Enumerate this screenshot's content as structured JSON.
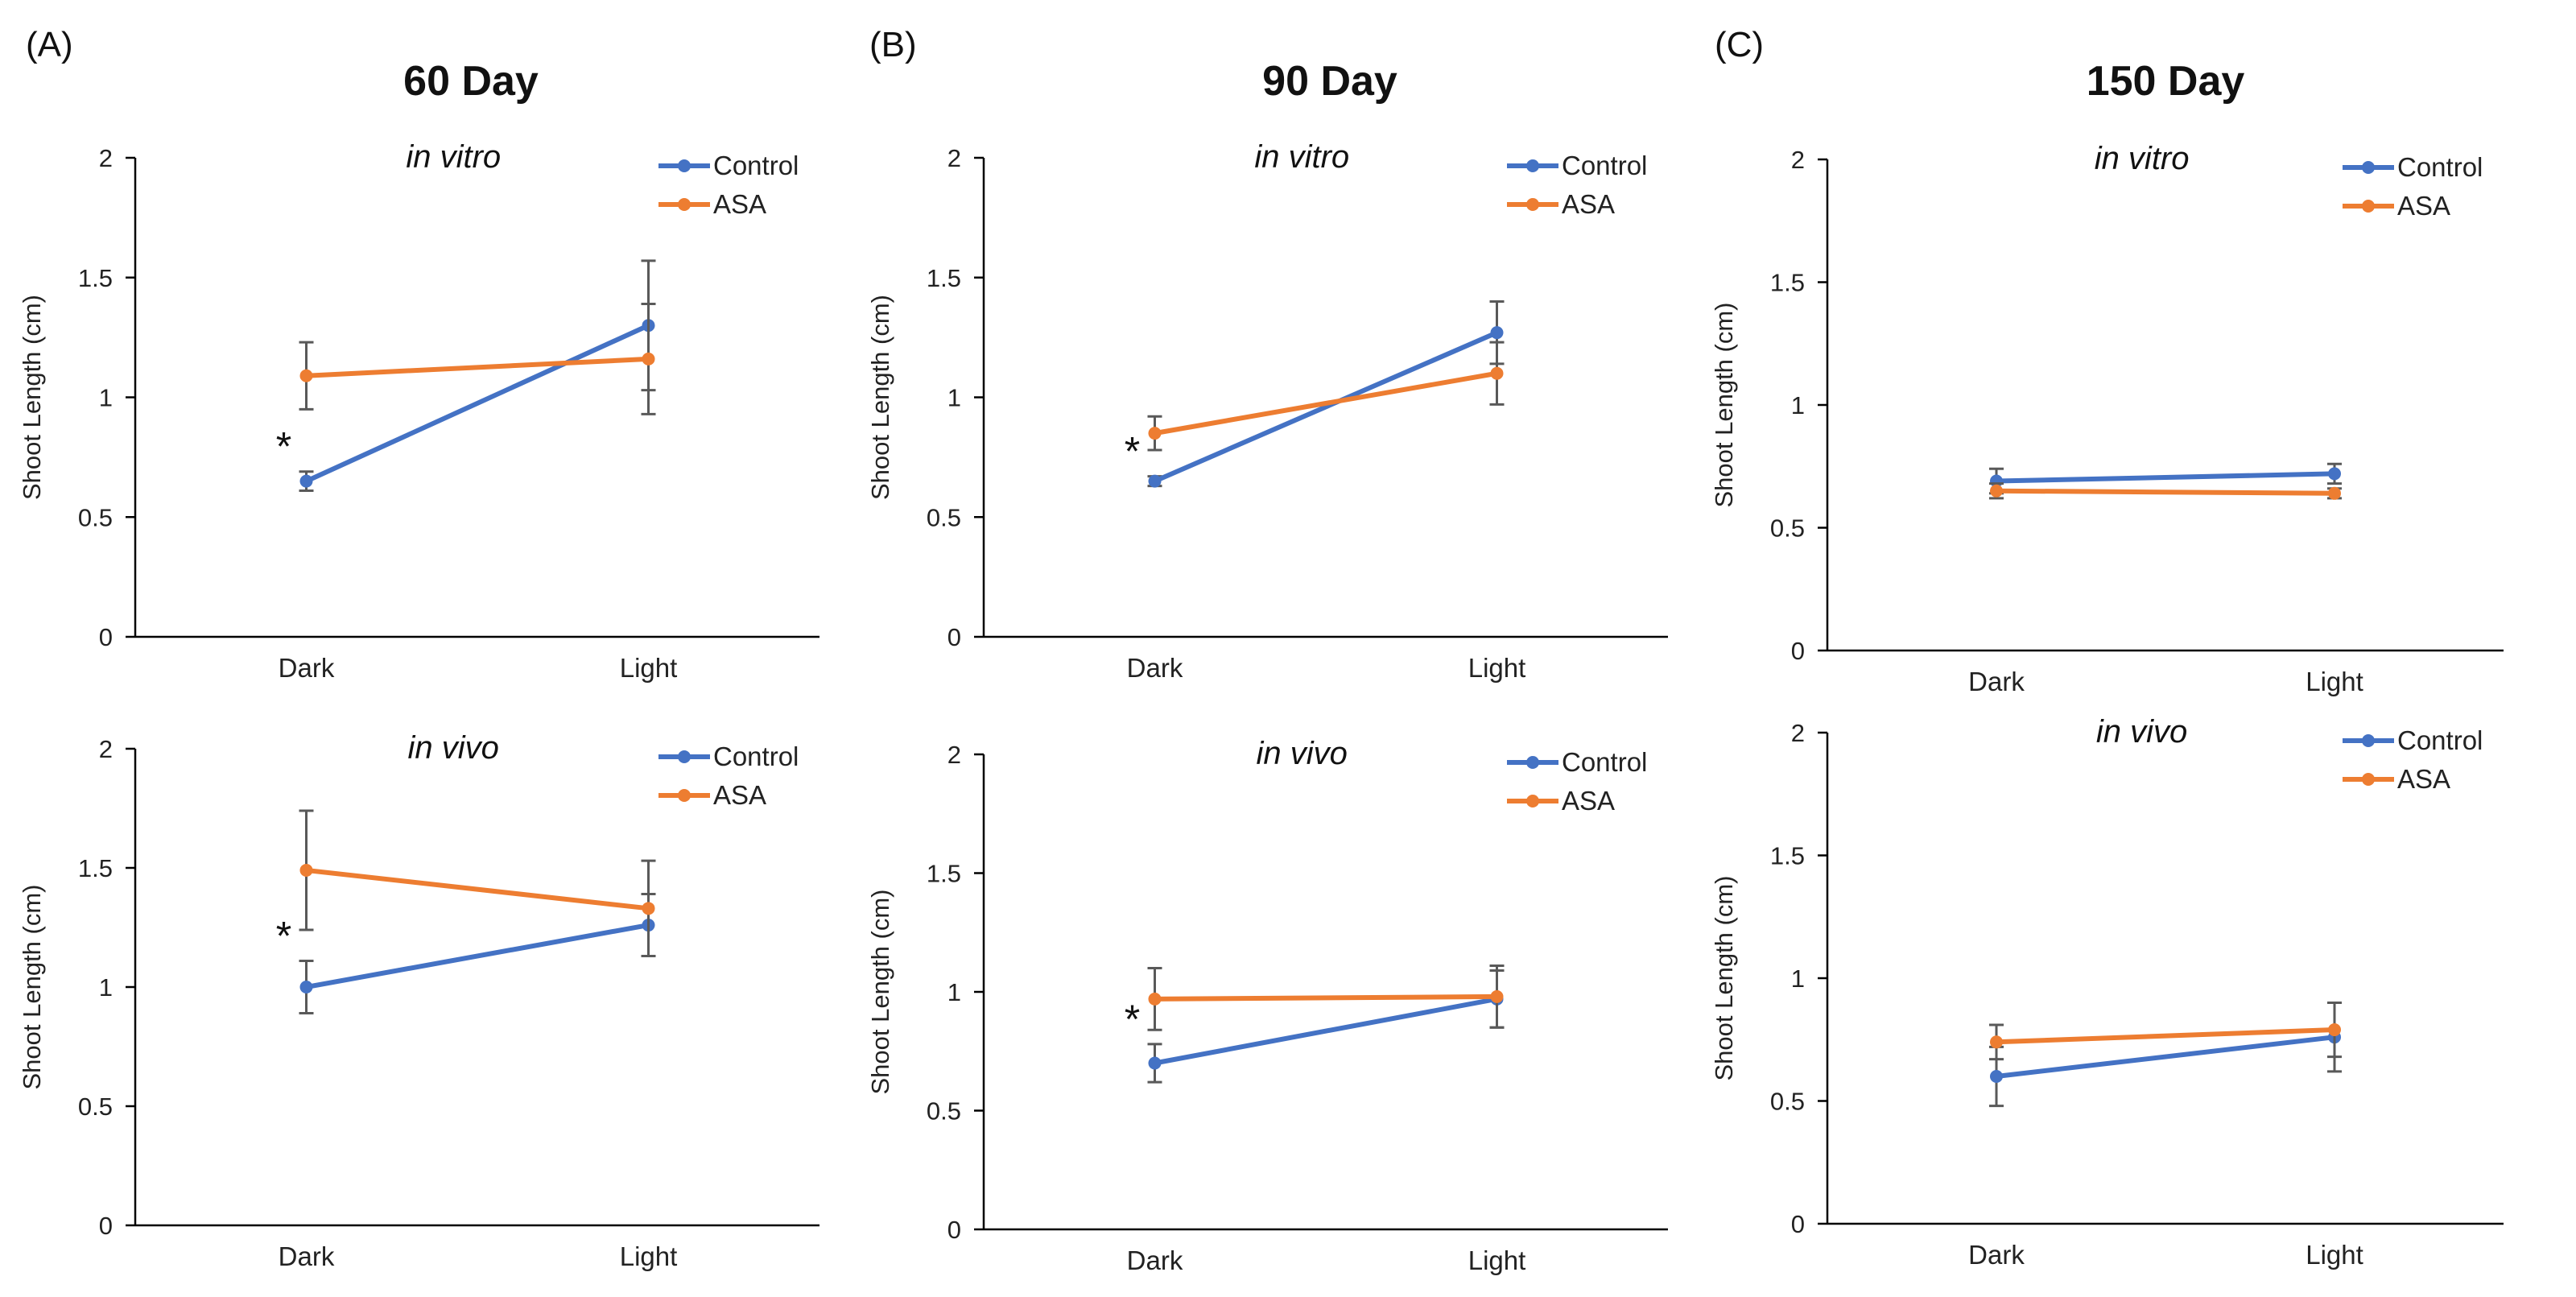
{
  "panels": [
    {
      "letter": "(A)",
      "title": "60 Day"
    },
    {
      "letter": "(B)",
      "title": "90 Day"
    },
    {
      "letter": "(C)",
      "title": "150 Day"
    }
  ],
  "colors": {
    "control": "#4472C4",
    "asa": "#ED7D31",
    "error_bar": "#595959",
    "axis": "#000000"
  },
  "chart_data": [
    {
      "type": "line",
      "panel": "A",
      "subtitle": "in vitro",
      "categories": [
        "Dark",
        "Light"
      ],
      "ylabel": "Shoot Length (cm)",
      "ylim": [
        0,
        2
      ],
      "yticks": [
        "0",
        "0.5",
        "1",
        "1.5",
        "2"
      ],
      "series": [
        {
          "name": "Control",
          "values": [
            0.65,
            1.3
          ],
          "errors": [
            0.04,
            0.27
          ]
        },
        {
          "name": "ASA",
          "values": [
            1.09,
            1.16
          ],
          "errors": [
            0.14,
            0.23
          ]
        }
      ],
      "significance": [
        {
          "category": "Dark",
          "label": "*"
        }
      ]
    },
    {
      "type": "line",
      "panel": "B",
      "subtitle": "in vitro",
      "categories": [
        "Dark",
        "Light"
      ],
      "ylabel": "Shoot Length (cm)",
      "ylim": [
        0,
        2
      ],
      "yticks": [
        "0",
        "0.5",
        "1",
        "1.5",
        "2"
      ],
      "series": [
        {
          "name": "Control",
          "values": [
            0.65,
            1.27
          ],
          "errors": [
            0.02,
            0.13
          ]
        },
        {
          "name": "ASA",
          "values": [
            0.85,
            1.1
          ],
          "errors": [
            0.07,
            0.13
          ]
        }
      ],
      "significance": [
        {
          "category": "Dark",
          "label": "*"
        }
      ]
    },
    {
      "type": "line",
      "panel": "C",
      "subtitle": "in vitro",
      "categories": [
        "Dark",
        "Light"
      ],
      "ylabel": "Shoot Length (cm)",
      "ylim": [
        0,
        2
      ],
      "yticks": [
        "0",
        "0.5",
        "1",
        "1.5",
        "2"
      ],
      "series": [
        {
          "name": "Control",
          "values": [
            0.69,
            0.72
          ],
          "errors": [
            0.05,
            0.04
          ]
        },
        {
          "name": "ASA",
          "values": [
            0.65,
            0.64
          ],
          "errors": [
            0.03,
            0.02
          ]
        }
      ],
      "significance": []
    },
    {
      "type": "line",
      "panel": "A",
      "subtitle": "in vivo",
      "categories": [
        "Dark",
        "Light"
      ],
      "ylabel": "Shoot Length (cm)",
      "ylim": [
        0,
        2
      ],
      "yticks": [
        "0",
        "0.5",
        "1",
        "1.5",
        "2"
      ],
      "series": [
        {
          "name": "Control",
          "values": [
            1.0,
            1.26
          ],
          "errors": [
            0.11,
            0.13
          ]
        },
        {
          "name": "ASA",
          "values": [
            1.49,
            1.33
          ],
          "errors": [
            0.25,
            0.2
          ]
        }
      ],
      "significance": [
        {
          "category": "Dark",
          "label": "*"
        }
      ]
    },
    {
      "type": "line",
      "panel": "B",
      "subtitle": "in vivo",
      "categories": [
        "Dark",
        "Light"
      ],
      "ylabel": "Shoot Length (cm)",
      "ylim": [
        0,
        2
      ],
      "yticks": [
        "0",
        "0.5",
        "1",
        "1.5",
        "2"
      ],
      "series": [
        {
          "name": "Control",
          "values": [
            0.7,
            0.97
          ],
          "errors": [
            0.08,
            0.12
          ]
        },
        {
          "name": "ASA",
          "values": [
            0.97,
            0.98
          ],
          "errors": [
            0.13,
            0.13
          ]
        }
      ],
      "significance": [
        {
          "category": "Dark",
          "label": "*"
        }
      ]
    },
    {
      "type": "line",
      "panel": "C",
      "subtitle": "in vivo",
      "categories": [
        "Dark",
        "Light"
      ],
      "ylabel": "Shoot Length (cm)",
      "ylim": [
        0,
        2
      ],
      "yticks": [
        "0",
        "0.5",
        "1",
        "1.5",
        "2"
      ],
      "series": [
        {
          "name": "Control",
          "values": [
            0.6,
            0.76
          ],
          "errors": [
            0.12,
            0.14
          ]
        },
        {
          "name": "ASA",
          "values": [
            0.74,
            0.79
          ],
          "errors": [
            0.07,
            0.11
          ]
        }
      ],
      "significance": []
    }
  ]
}
